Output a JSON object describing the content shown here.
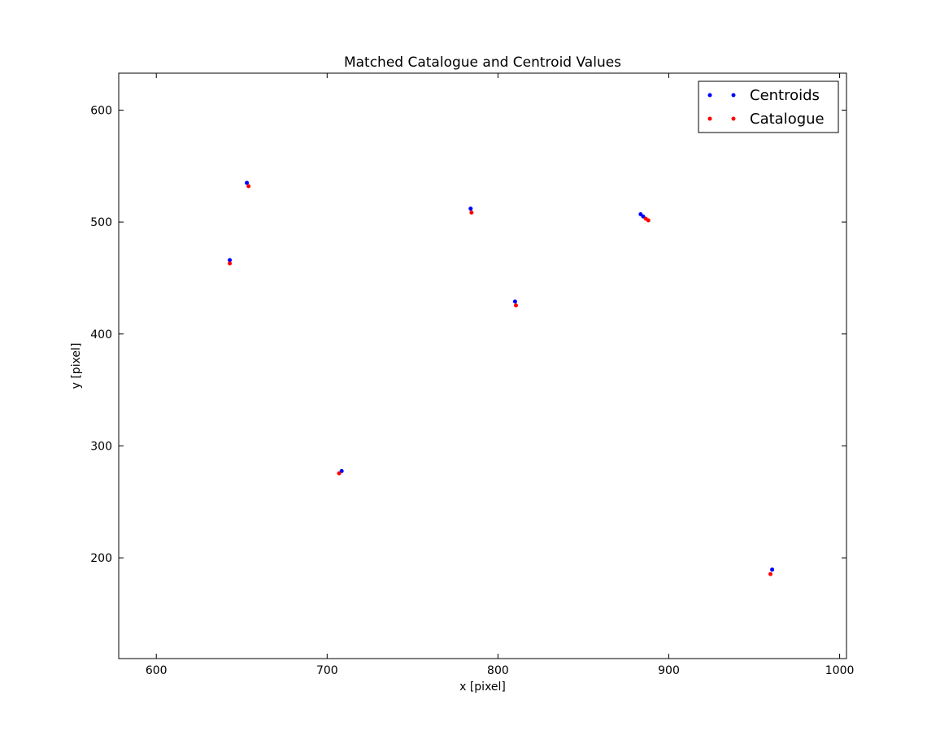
{
  "chart_data": {
    "type": "scatter",
    "title": "Matched Catalogue and Centroid Values",
    "xlabel": "x [pixel]",
    "ylabel": "y [pixel]",
    "xlim": [
      578,
      1004
    ],
    "ylim": [
      110,
      633
    ],
    "xticks": [
      600,
      700,
      800,
      900,
      1000
    ],
    "yticks": [
      200,
      300,
      400,
      500,
      600
    ],
    "grid": false,
    "legend_position": "top-right",
    "series": [
      {
        "name": "Centroids",
        "color": "#0000ff",
        "points": [
          {
            "x": 653.0,
            "y": 535.0
          },
          {
            "x": 643.0,
            "y": 466.0
          },
          {
            "x": 784.0,
            "y": 512.0
          },
          {
            "x": 883.5,
            "y": 507.0
          },
          {
            "x": 885.0,
            "y": 505.0
          },
          {
            "x": 810.0,
            "y": 429.0
          },
          {
            "x": 708.5,
            "y": 277.5
          },
          {
            "x": 960.5,
            "y": 189.5
          }
        ]
      },
      {
        "name": "Catalogue",
        "color": "#ff0000",
        "points": [
          {
            "x": 654.0,
            "y": 532.0
          },
          {
            "x": 643.0,
            "y": 463.0
          },
          {
            "x": 784.5,
            "y": 508.5
          },
          {
            "x": 886.5,
            "y": 503.0
          },
          {
            "x": 888.0,
            "y": 501.5
          },
          {
            "x": 810.5,
            "y": 425.5
          },
          {
            "x": 707.0,
            "y": 275.5
          },
          {
            "x": 959.5,
            "y": 185.5
          }
        ]
      }
    ]
  }
}
